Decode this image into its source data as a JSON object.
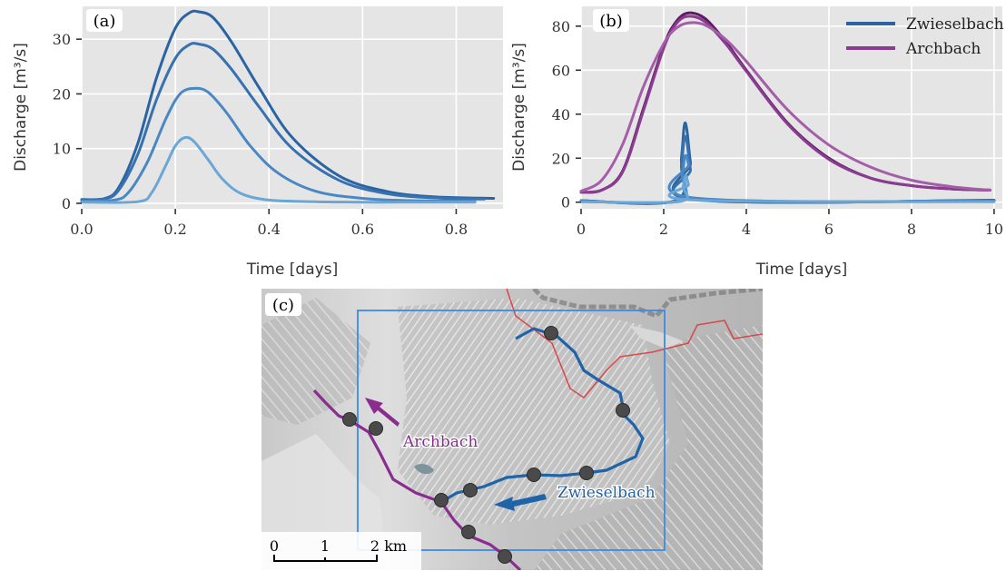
{
  "chart_data": [
    {
      "type": "line",
      "panel_label": "(a)",
      "xlabel": "Time [days]",
      "ylabel": "Discharge [m³/s]",
      "xlim": [
        0.0,
        0.9
      ],
      "ylim": [
        -1,
        36
      ],
      "xticks": [
        0.0,
        0.2,
        0.4,
        0.6,
        0.8
      ],
      "xtick_labels": [
        "0.0",
        "0.2",
        "0.4",
        "0.6",
        "0.8"
      ],
      "yticks": [
        0,
        10,
        20,
        30
      ],
      "ytick_labels": [
        "0",
        "10",
        "20",
        "30"
      ],
      "grid": true,
      "series": [
        {
          "color": "#2a64a3",
          "x": [
            0,
            0.05,
            0.08,
            0.12,
            0.16,
            0.2,
            0.23,
            0.25,
            0.28,
            0.32,
            0.38,
            0.45,
            0.55,
            0.65,
            0.75,
            0.88
          ],
          "y": [
            0.7,
            0.9,
            3,
            11,
            23,
            32,
            34.8,
            35,
            34,
            29.5,
            21,
            12,
            5,
            2.2,
            1.2,
            0.9
          ]
        },
        {
          "color": "#3671b0",
          "x": [
            0,
            0.05,
            0.08,
            0.12,
            0.16,
            0.2,
            0.23,
            0.25,
            0.28,
            0.32,
            0.38,
            0.45,
            0.55,
            0.65,
            0.75,
            0.86
          ],
          "y": [
            0.6,
            0.8,
            2.5,
            9,
            19,
            26.5,
            29,
            29.1,
            28.2,
            24.5,
            17.5,
            10,
            4.2,
            1.8,
            1.0,
            0.8
          ]
        },
        {
          "color": "#4a88c4",
          "x": [
            0,
            0.07,
            0.1,
            0.14,
            0.18,
            0.21,
            0.24,
            0.27,
            0.31,
            0.36,
            0.42,
            0.5,
            0.6,
            0.7,
            0.84
          ],
          "y": [
            0.4,
            0.6,
            2,
            7.5,
            15.5,
            20,
            21,
            20.3,
            16.5,
            10.5,
            5.5,
            2.2,
            0.9,
            0.5,
            0.4
          ]
        },
        {
          "color": "#6aa6d6",
          "x": [
            0,
            0.12,
            0.15,
            0.18,
            0.2,
            0.22,
            0.24,
            0.27,
            0.3,
            0.34,
            0.4,
            0.5,
            0.6,
            0.7,
            0.84
          ],
          "y": [
            0.2,
            0.3,
            2,
            7,
            10.5,
            12,
            11.3,
            8,
            4.5,
            1.8,
            0.6,
            0.3,
            0.2,
            0.2,
            0.2
          ]
        }
      ]
    },
    {
      "type": "line",
      "panel_label": "(b)",
      "xlabel": "Time [days]",
      "ylabel": "Discharge [m³/s]",
      "xlim": [
        0,
        10.2
      ],
      "ylim": [
        -3,
        89
      ],
      "xticks": [
        0,
        2,
        4,
        6,
        8,
        10
      ],
      "xtick_labels": [
        "0",
        "2",
        "4",
        "6",
        "8",
        "10"
      ],
      "yticks": [
        0,
        20,
        40,
        60,
        80
      ],
      "ytick_labels": [
        "0",
        "20",
        "40",
        "60",
        "80"
      ],
      "grid": true,
      "legend": {
        "position": "top-right",
        "entries": [
          {
            "label": "Zwieselbach",
            "color": "#2a64a3"
          },
          {
            "label": "Archbach",
            "color": "#8a3c91"
          }
        ]
      },
      "series": [
        {
          "color": "#5b1b5e",
          "x": [
            0,
            0.5,
            1.0,
            1.5,
            2.0,
            2.3,
            2.6,
            3.0,
            3.5,
            4.0,
            5.0,
            6.0,
            7.0,
            8.0,
            9.0,
            9.9
          ],
          "y": [
            4.5,
            5.5,
            14,
            42,
            71,
            82,
            86,
            83.5,
            73,
            60,
            36,
            20,
            11,
            7.5,
            6,
            5.5
          ]
        },
        {
          "color": "#8a3c91",
          "x": [
            0,
            0.5,
            1.0,
            1.5,
            2.0,
            2.3,
            2.6,
            3.0,
            3.5,
            4.0,
            5.0,
            6.0,
            7.0,
            8.0,
            9.0,
            9.9
          ],
          "y": [
            4.5,
            5.5,
            13.5,
            41,
            70,
            81,
            84.5,
            82,
            72,
            59.5,
            35.5,
            19.5,
            11,
            7.5,
            6,
            5.5
          ]
        },
        {
          "color": "#a45ea8",
          "x": [
            0,
            0.5,
            1.0,
            1.5,
            2.0,
            2.3,
            2.6,
            3.0,
            3.5,
            4.0,
            5.0,
            6.0,
            7.0,
            8.0,
            9.0,
            9.9
          ],
          "y": [
            5,
            10,
            26,
            52,
            72,
            79,
            81.5,
            80.5,
            74,
            64,
            42,
            26,
            16,
            10,
            7,
            5.5
          ]
        },
        {
          "color": "#2a64a3",
          "x": [
            0,
            2.3,
            2.43,
            2.5,
            2.56,
            2.65,
            2.8,
            10
          ],
          "y": [
            0.7,
            0.8,
            20,
            35,
            33,
            18,
            1.2,
            0.9
          ]
        },
        {
          "color": "#3671b0",
          "x": [
            0,
            2.3,
            2.43,
            2.5,
            2.56,
            2.65,
            2.8,
            10
          ],
          "y": [
            0.6,
            0.7,
            17,
            29,
            27.5,
            15,
            1.0,
            0.8
          ]
        },
        {
          "color": "#4a88c4",
          "x": [
            0,
            2.35,
            2.45,
            2.52,
            2.6,
            2.7,
            10
          ],
          "y": [
            0.4,
            0.5,
            12,
            21,
            17,
            2,
            0.4
          ]
        },
        {
          "color": "#6aa6d6",
          "x": [
            0,
            2.38,
            2.47,
            2.53,
            2.6,
            2.7,
            10
          ],
          "y": [
            0.2,
            0.3,
            7,
            12,
            8,
            1,
            0.2
          ]
        }
      ]
    }
  ],
  "map": {
    "panel_label": "(c)",
    "archbach_label": "Archbach",
    "zwieselbach_label": "Zwieselbach",
    "scale_labels": [
      "0",
      "1",
      "2 km"
    ],
    "colors": {
      "archbach": "#8a2d8f",
      "zwieselbach": "#1f63a8",
      "boundary": "#d8383a",
      "frame": "#3c8ae6"
    }
  }
}
